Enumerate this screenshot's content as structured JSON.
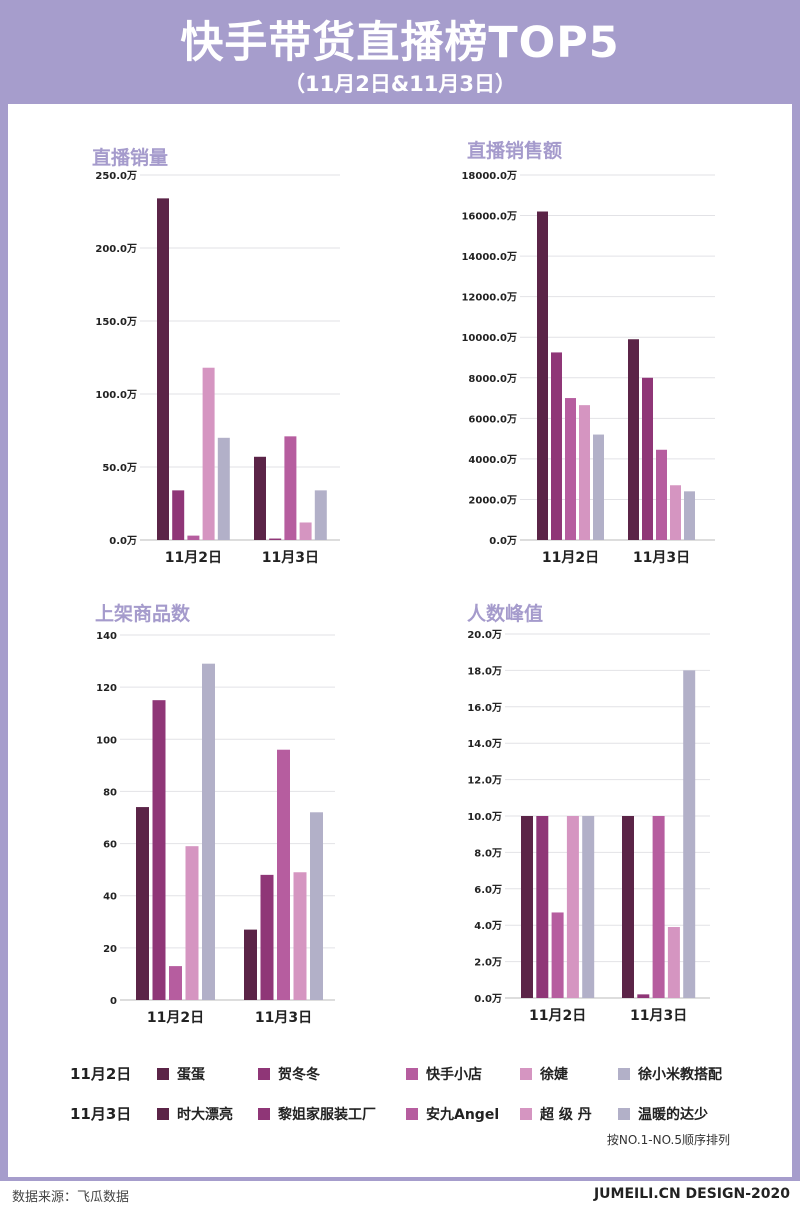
{
  "header": {
    "title": "快手带货直播榜TOP5",
    "subtitle": "（11月2日&11月3日）"
  },
  "colors": [
    "#5b2447",
    "#8f3677",
    "#b65d9f",
    "#d595c1",
    "#b2b0c8"
  ],
  "chart_data": [
    {
      "type": "bar",
      "title": "直播销量",
      "categories": [
        "11月2日",
        "11月3日"
      ],
      "ylim": [
        0,
        250
      ],
      "ticks": [
        "0.0万",
        "50.0万",
        "100.0万",
        "150.0万",
        "200.0万",
        "250.0万"
      ],
      "tick_values": [
        0,
        50,
        100,
        150,
        200,
        250
      ],
      "grid": true,
      "series": [
        {
          "values": [
            234,
            57
          ]
        },
        {
          "values": [
            34,
            1
          ]
        },
        {
          "values": [
            3,
            71
          ]
        },
        {
          "values": [
            118,
            12
          ]
        },
        {
          "values": [
            70,
            34
          ]
        }
      ]
    },
    {
      "type": "bar",
      "title": "直播销售额",
      "categories": [
        "11月2日",
        "11月3日"
      ],
      "ylim": [
        0,
        18000
      ],
      "ticks": [
        "0.0万",
        "2000.0万",
        "4000.0万",
        "6000.0万",
        "8000.0万",
        "10000.0万",
        "12000.0万",
        "14000.0万",
        "16000.0万",
        "18000.0万"
      ],
      "tick_values": [
        0,
        2000,
        4000,
        6000,
        8000,
        10000,
        12000,
        14000,
        16000,
        18000
      ],
      "grid": true,
      "series": [
        {
          "values": [
            16200,
            9900
          ]
        },
        {
          "values": [
            9250,
            8000
          ]
        },
        {
          "values": [
            7000,
            4450
          ]
        },
        {
          "values": [
            6650,
            2700
          ]
        },
        {
          "values": [
            5200,
            2400
          ]
        }
      ]
    },
    {
      "type": "bar",
      "title": "上架商品数",
      "categories": [
        "11月2日",
        "11月3日"
      ],
      "ylim": [
        0,
        140
      ],
      "ticks": [
        "0",
        "20",
        "40",
        "60",
        "80",
        "100",
        "120",
        "140"
      ],
      "tick_values": [
        0,
        20,
        40,
        60,
        80,
        100,
        120,
        140
      ],
      "grid": true,
      "series": [
        {
          "values": [
            74,
            27
          ]
        },
        {
          "values": [
            115,
            48
          ]
        },
        {
          "values": [
            13,
            96
          ]
        },
        {
          "values": [
            59,
            49
          ]
        },
        {
          "values": [
            129,
            72
          ]
        }
      ]
    },
    {
      "type": "bar",
      "title": "人数峰值",
      "categories": [
        "11月2日",
        "11月3日"
      ],
      "ylim": [
        0,
        20
      ],
      "ticks": [
        "0.0万",
        "2.0万",
        "4.0万",
        "6.0万",
        "8.0万",
        "10.0万",
        "12.0万",
        "14.0万",
        "16.0万",
        "18.0万",
        "20.0万"
      ],
      "tick_values": [
        0,
        2,
        4,
        6,
        8,
        10,
        12,
        14,
        16,
        18,
        20
      ],
      "grid": true,
      "series": [
        {
          "values": [
            10,
            10
          ]
        },
        {
          "values": [
            10,
            0.2
          ]
        },
        {
          "values": [
            4.7,
            10
          ]
        },
        {
          "values": [
            10,
            3.9
          ]
        },
        {
          "values": [
            10,
            18
          ]
        }
      ]
    }
  ],
  "legend": {
    "rows": [
      {
        "date": "11月2日",
        "names": [
          "蛋蛋",
          "贺冬冬",
          "快手小店",
          "徐婕",
          "徐小米教搭配"
        ]
      },
      {
        "date": "11月3日",
        "names": [
          "时大漂亮",
          "黎姐家服装工厂",
          "安九Angel",
          "超 级 丹",
          "温暖的达少"
        ]
      }
    ],
    "note": "按NO.1-NO.5顺序排列"
  },
  "footer": {
    "source": "数据来源：飞瓜数据",
    "design": "JUMEILI.CN DESIGN-2020"
  }
}
